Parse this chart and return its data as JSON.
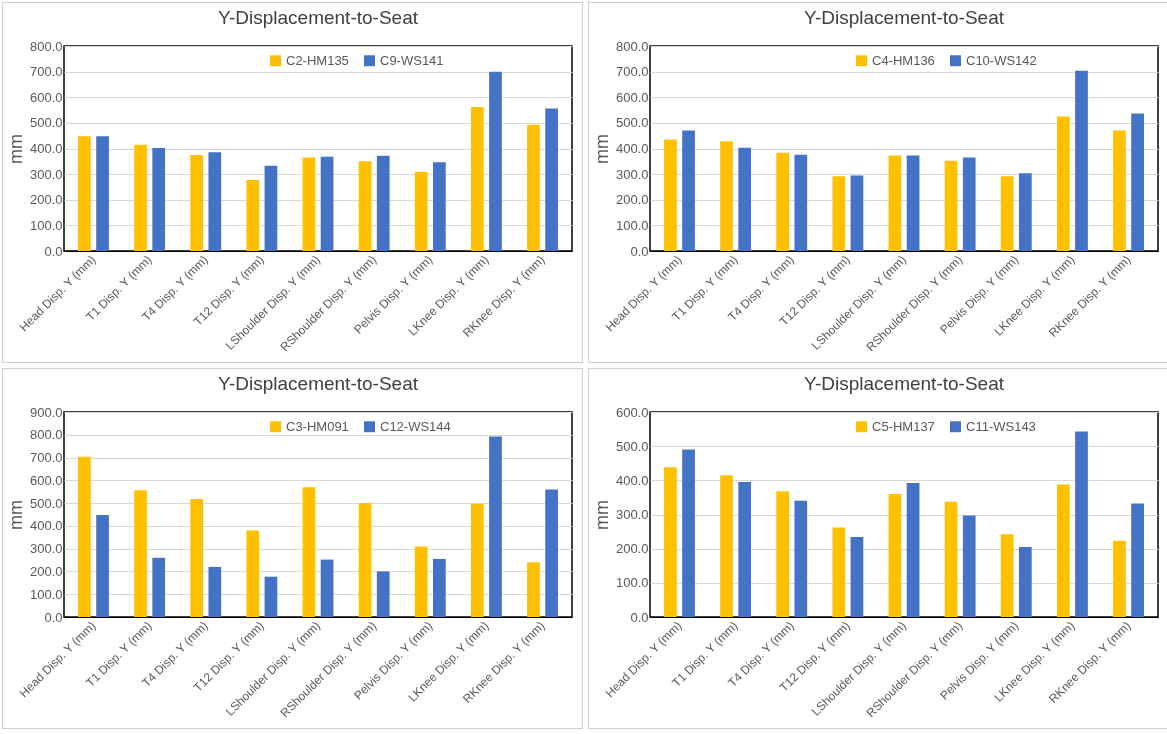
{
  "chart_data": [
    {
      "type": "bar",
      "title": "Y-Displacement-to-Seat",
      "ylabel": "mm",
      "categories": [
        "Head Disp. Y (mm)",
        "T1 Disp. Y (mm)",
        "T4 Disp. Y (mm)",
        "T12 Disp. Y (mm)",
        "LShoulder Disp. Y (mm)",
        "RShoulder Disp. Y (mm)",
        "Pelvis Disp. Y (mm)",
        "LKnee Disp. Y (mm)",
        "RKnee Disp. Y (mm)"
      ],
      "series": [
        {
          "name": "C2-HM135",
          "color": "#ffc000",
          "values": [
            448,
            415,
            375,
            277,
            365,
            350,
            308,
            562,
            493
          ]
        },
        {
          "name": "C9-WS141",
          "color": "#4472c4",
          "values": [
            448,
            402,
            385,
            333,
            368,
            372,
            346,
            700,
            556
          ]
        }
      ],
      "ylim": [
        0,
        800
      ],
      "yticks": [
        {
          "value": 0,
          "label": "0.0"
        },
        {
          "value": 100,
          "label": "100.0"
        },
        {
          "value": 200,
          "label": "200.0"
        },
        {
          "value": 300,
          "label": "300.0"
        },
        {
          "value": 400,
          "label": "400.0"
        },
        {
          "value": 500,
          "label": "500.0"
        },
        {
          "value": 600,
          "label": "600.0"
        },
        {
          "value": 700,
          "label": "700.0"
        },
        {
          "value": 800,
          "label": "800.0"
        }
      ],
      "grid": "y",
      "legend": "top"
    },
    {
      "type": "bar",
      "title": "Y-Displacement-to-Seat",
      "ylabel": "mm",
      "categories": [
        "Head Disp. Y (mm)",
        "T1 Disp. Y (mm)",
        "T4 Disp. Y (mm)",
        "T12 Disp. Y (mm)",
        "LShoulder Disp. Y (mm)",
        "RShoulder Disp. Y (mm)",
        "Pelvis Disp. Y (mm)",
        "LKnee Disp. Y (mm)",
        "RKnee Disp. Y (mm)"
      ],
      "series": [
        {
          "name": "C4-HM136",
          "color": "#ffc000",
          "values": [
            435,
            428,
            383,
            292,
            373,
            352,
            292,
            525,
            470
          ]
        },
        {
          "name": "C10-WS142",
          "color": "#4472c4",
          "values": [
            470,
            403,
            376,
            295,
            373,
            365,
            303,
            703,
            537
          ]
        }
      ],
      "ylim": [
        0,
        800
      ],
      "yticks": [
        {
          "value": 0,
          "label": "0.0"
        },
        {
          "value": 100,
          "label": "100.0"
        },
        {
          "value": 200,
          "label": "200.0"
        },
        {
          "value": 300,
          "label": "300.0"
        },
        {
          "value": 400,
          "label": "400.0"
        },
        {
          "value": 500,
          "label": "500.0"
        },
        {
          "value": 600,
          "label": "600.0"
        },
        {
          "value": 700,
          "label": "700.0"
        },
        {
          "value": 800,
          "label": "800.0"
        }
      ],
      "grid": "y",
      "legend": "top"
    },
    {
      "type": "bar",
      "title": "Y-Displacement-to-Seat",
      "ylabel": "mm",
      "categories": [
        "Head Disp. Y (mm)",
        "T1 Disp. Y (mm)",
        "T4 Disp. Y (mm)",
        "T12 Disp. Y (mm)",
        "LShoulder Disp. Y (mm)",
        "RShoulder Disp. Y (mm)",
        "Pelvis Disp. Y (mm)",
        "LKnee Disp. Y (mm)",
        "RKnee Disp. Y (mm)"
      ],
      "series": [
        {
          "name": "C3-HM091",
          "color": "#ffc000",
          "values": [
            703,
            557,
            518,
            380,
            570,
            500,
            310,
            497,
            240
          ]
        },
        {
          "name": "C12-WS144",
          "color": "#4472c4",
          "values": [
            448,
            260,
            220,
            177,
            252,
            200,
            255,
            792,
            560
          ]
        }
      ],
      "ylim": [
        0,
        900
      ],
      "yticks": [
        {
          "value": 0,
          "label": "0.0"
        },
        {
          "value": 100,
          "label": "100.0"
        },
        {
          "value": 200,
          "label": "200.0"
        },
        {
          "value": 300,
          "label": "300.0"
        },
        {
          "value": 400,
          "label": "400.0"
        },
        {
          "value": 500,
          "label": "500.0"
        },
        {
          "value": 600,
          "label": "600.0"
        },
        {
          "value": 700,
          "label": "700.0"
        },
        {
          "value": 800,
          "label": "800.0"
        },
        {
          "value": 900,
          "label": "900.0"
        }
      ],
      "grid": "y",
      "legend": "top"
    },
    {
      "type": "bar",
      "title": "Y-Displacement-to-Seat",
      "ylabel": "mm",
      "categories": [
        "Head Disp. Y (mm)",
        "T1 Disp. Y (mm)",
        "T4 Disp. Y (mm)",
        "T12 Disp. Y (mm)",
        "LShoulder Disp. Y (mm)",
        "RShoulder Disp. Y (mm)",
        "Pelvis Disp. Y (mm)",
        "LKnee Disp. Y (mm)",
        "RKnee Disp. Y (mm)"
      ],
      "series": [
        {
          "name": "C5-HM137",
          "color": "#ffc000",
          "values": [
            438,
            415,
            368,
            262,
            360,
            337,
            242,
            388,
            223
          ]
        },
        {
          "name": "C11-WS143",
          "color": "#4472c4",
          "values": [
            490,
            395,
            340,
            234,
            392,
            297,
            205,
            543,
            332
          ]
        }
      ],
      "ylim": [
        0,
        600
      ],
      "yticks": [
        {
          "value": 0,
          "label": "0.0"
        },
        {
          "value": 100,
          "label": "100.0"
        },
        {
          "value": 200,
          "label": "200.0"
        },
        {
          "value": 300,
          "label": "300.0"
        },
        {
          "value": 400,
          "label": "400.0"
        },
        {
          "value": 500,
          "label": "500.0"
        },
        {
          "value": 600,
          "label": "600.0"
        }
      ],
      "grid": "y",
      "legend": "top"
    }
  ]
}
